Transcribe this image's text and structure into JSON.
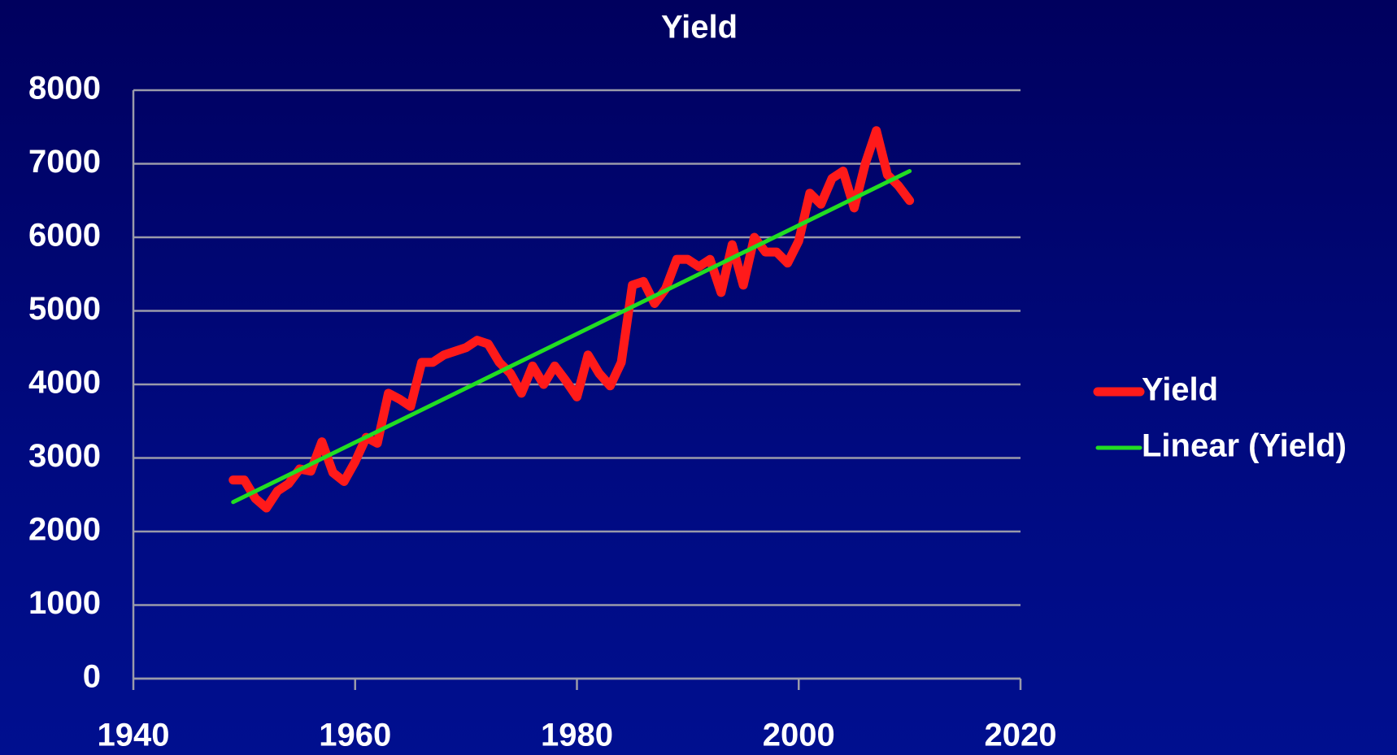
{
  "chart_data": {
    "type": "line",
    "title": "Yield",
    "series": [
      {
        "name": "Yield",
        "color": "#ff1a1a",
        "x": [
          1949,
          1950,
          1951,
          1952,
          1953,
          1954,
          1955,
          1956,
          1957,
          1958,
          1959,
          1960,
          1961,
          1962,
          1963,
          1964,
          1965,
          1966,
          1967,
          1968,
          1969,
          1970,
          1971,
          1972,
          1973,
          1974,
          1975,
          1976,
          1977,
          1978,
          1979,
          1980,
          1981,
          1982,
          1983,
          1984,
          1985,
          1986,
          1987,
          1988,
          1989,
          1990,
          1991,
          1992,
          1993,
          1994,
          1995,
          1996,
          1997,
          1998,
          1999,
          2000,
          2001,
          2002,
          2003,
          2004,
          2005,
          2006,
          2007,
          2008,
          2009,
          2010
        ],
        "values": [
          2700,
          2700,
          2450,
          2320,
          2550,
          2650,
          2850,
          2820,
          3220,
          2800,
          2680,
          2950,
          3280,
          3200,
          3880,
          3800,
          3700,
          4300,
          4300,
          4400,
          4450,
          4500,
          4600,
          4550,
          4300,
          4150,
          3880,
          4250,
          4000,
          4250,
          4050,
          3830,
          4400,
          4150,
          3980,
          4300,
          5350,
          5400,
          5100,
          5300,
          5700,
          5700,
          5600,
          5700,
          5250,
          5900,
          5350,
          6000,
          5800,
          5800,
          5650,
          5950,
          6600,
          6450,
          6800,
          6900,
          6400,
          7000,
          7450,
          6850,
          6700,
          6500
        ]
      },
      {
        "name": "Linear (Yield)",
        "color": "#22dd22",
        "x": [
          1949,
          2010
        ],
        "values": [
          2400,
          6900
        ]
      }
    ],
    "xlim": [
      1940,
      2020
    ],
    "xticks": [
      1940,
      1960,
      1980,
      2000,
      2020
    ],
    "ylim": [
      0,
      8000
    ],
    "yticks": [
      0,
      1000,
      2000,
      3000,
      4000,
      5000,
      6000,
      7000,
      8000
    ],
    "grid": true,
    "legend": "right"
  }
}
